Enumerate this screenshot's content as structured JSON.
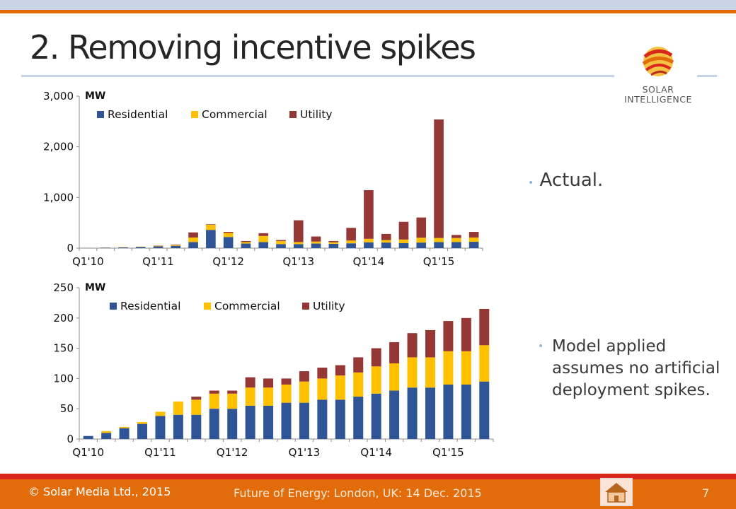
{
  "slide": {
    "title": "2. Removing incentive spikes",
    "logo_line1": "SOLAR",
    "logo_line2": "INTELLIGENCE",
    "bullet_actual": "Actual.",
    "bullet_model": "Model applied assumes no artificial deployment spikes.",
    "footer_copyright": "© Solar Media Ltd., 2015",
    "footer_event": "Future of Energy: London, UK: 14 Dec. 2015",
    "page_number": "7"
  },
  "colors": {
    "residential": "#2f5597",
    "commercial": "#ffc000",
    "utility": "#953735",
    "accent_orange": "#e36c0a",
    "accent_red": "#d9271c"
  },
  "icons": [
    "logo-icon",
    "home-icon"
  ],
  "chart_data": [
    {
      "type": "bar",
      "stacked": true,
      "ylabel": "MW",
      "ylim": [
        0,
        3000
      ],
      "yticks": [
        0,
        1000,
        2000,
        3000
      ],
      "ytick_labels": [
        "0",
        "1,000",
        "2,000",
        "3,000"
      ],
      "categories": [
        "Q1'10",
        "Q2'10",
        "Q3'10",
        "Q4'10",
        "Q1'11",
        "Q2'11",
        "Q3'11",
        "Q4'11",
        "Q1'12",
        "Q2'12",
        "Q3'12",
        "Q4'12",
        "Q1'13",
        "Q2'13",
        "Q3'13",
        "Q4'13",
        "Q1'14",
        "Q2'14",
        "Q3'14",
        "Q4'14",
        "Q1'15",
        "Q2'15",
        "Q3'15"
      ],
      "xtick_labels": [
        "Q1'10",
        "Q1'11",
        "Q1'12",
        "Q1'13",
        "Q1'14",
        "Q1'15"
      ],
      "legend_position": "top-left",
      "series": [
        {
          "name": "Residential",
          "values": [
            5,
            10,
            15,
            25,
            35,
            45,
            120,
            360,
            220,
            90,
            120,
            80,
            80,
            90,
            85,
            95,
            115,
            110,
            100,
            110,
            120,
            120,
            125
          ]
        },
        {
          "name": "Commercial",
          "values": [
            2,
            3,
            5,
            5,
            10,
            15,
            90,
            100,
            80,
            30,
            120,
            60,
            40,
            40,
            30,
            55,
            70,
            50,
            70,
            95,
            80,
            80,
            85
          ]
        },
        {
          "name": "Utility",
          "values": [
            0,
            0,
            0,
            0,
            5,
            10,
            100,
            10,
            20,
            20,
            55,
            20,
            430,
            100,
            25,
            250,
            960,
            120,
            350,
            400,
            2340,
            60,
            110
          ]
        }
      ]
    },
    {
      "type": "bar",
      "stacked": true,
      "ylabel": "MW",
      "ylim": [
        0,
        250
      ],
      "yticks": [
        0,
        50,
        100,
        150,
        200,
        250
      ],
      "ytick_labels": [
        "0",
        "50",
        "100",
        "150",
        "200",
        "250"
      ],
      "categories": [
        "Q1'10",
        "Q2'10",
        "Q3'10",
        "Q4'10",
        "Q1'11",
        "Q2'11",
        "Q3'11",
        "Q4'11",
        "Q1'12",
        "Q2'12",
        "Q3'12",
        "Q4'12",
        "Q1'13",
        "Q2'13",
        "Q3'13",
        "Q4'13",
        "Q1'14",
        "Q2'14",
        "Q3'14",
        "Q4'14",
        "Q1'15",
        "Q2'15",
        "Q3'15"
      ],
      "xtick_labels": [
        "Q1'10",
        "Q1'11",
        "Q1'12",
        "Q1'13",
        "Q1'14",
        "Q1'15"
      ],
      "legend_position": "top-left",
      "series": [
        {
          "name": "Residential",
          "values": [
            5,
            10,
            18,
            25,
            38,
            40,
            40,
            50,
            50,
            55,
            55,
            60,
            60,
            65,
            65,
            70,
            75,
            80,
            85,
            85,
            90,
            90,
            95
          ]
        },
        {
          "name": "Commercial",
          "values": [
            0,
            3,
            2,
            3,
            7,
            22,
            25,
            25,
            25,
            30,
            30,
            30,
            35,
            35,
            40,
            40,
            45,
            45,
            50,
            50,
            55,
            55,
            60
          ]
        },
        {
          "name": "Utility",
          "values": [
            0,
            0,
            0,
            0,
            0,
            0,
            5,
            5,
            5,
            17,
            15,
            10,
            17,
            18,
            17,
            25,
            30,
            35,
            40,
            45,
            50,
            55,
            60
          ]
        }
      ]
    }
  ]
}
